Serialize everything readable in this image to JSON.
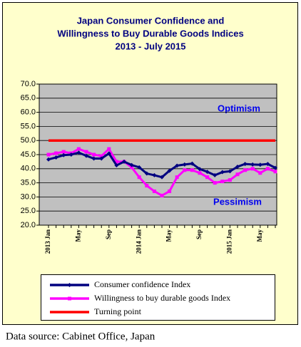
{
  "chart_data": {
    "type": "line",
    "title": [
      "Japan Consumer Confidence and",
      "Willingness to Buy Durable Goods Indices",
      "2013 - July  2015"
    ],
    "categories": [
      "2013 Jan",
      null,
      null,
      null,
      "May",
      null,
      null,
      null,
      "Sep",
      null,
      null,
      null,
      "2014 Jan",
      null,
      null,
      null,
      "May",
      null,
      null,
      null,
      "Sep",
      null,
      null,
      null,
      "2015 Jan",
      null,
      null,
      null,
      "May",
      null,
      null
    ],
    "series": [
      {
        "name": "Consumer confidence Index",
        "color": "#000080",
        "values": [
          43.3,
          44.0,
          44.8,
          45.0,
          45.7,
          44.6,
          43.6,
          43.6,
          45.4,
          41.2,
          42.5,
          41.3,
          40.5,
          38.3,
          37.7,
          37.0,
          39.3,
          41.1,
          41.5,
          41.8,
          39.9,
          38.9,
          37.7,
          38.8,
          39.1,
          40.7,
          41.7,
          41.5,
          41.4,
          41.7,
          40.3
        ]
      },
      {
        "name": "Willingness to buy durable goods Index",
        "color": "#ff00ff",
        "values": [
          45.0,
          45.5,
          46.0,
          45.5,
          47.0,
          46.0,
          45.0,
          44.5,
          47.0,
          42.5,
          42.5,
          40.5,
          37.0,
          34.0,
          32.0,
          30.5,
          32.0,
          37.0,
          39.5,
          39.5,
          38.5,
          37.0,
          35.0,
          35.5,
          36.0,
          38.0,
          39.5,
          40.0,
          38.5,
          40.0,
          39.0
        ]
      },
      {
        "name": "Turning point",
        "color": "#ff0000",
        "values": [
          50,
          50,
          50,
          50,
          50,
          50,
          50,
          50,
          50,
          50,
          50,
          50,
          50,
          50,
          50,
          50,
          50,
          50,
          50,
          50,
          50,
          50,
          50,
          50,
          50,
          50,
          50,
          50,
          50,
          50,
          50
        ]
      }
    ],
    "ylim": [
      20,
      70
    ],
    "yticks": [
      {
        "value": 20,
        "label": "20.0"
      },
      {
        "value": 25,
        "label": "25.0"
      },
      {
        "value": 30,
        "label": "30.0"
      },
      {
        "value": 35,
        "label": "35.0"
      },
      {
        "value": 40,
        "label": "40.0"
      },
      {
        "value": 45,
        "label": "45.0"
      },
      {
        "value": 50,
        "label": "50.0"
      },
      {
        "value": 55,
        "label": "55.0"
      },
      {
        "value": 60,
        "label": "60.0"
      },
      {
        "value": 65,
        "label": "65.0"
      },
      {
        "value": 70,
        "label": "70.0"
      }
    ],
    "grid": true,
    "annotations": [
      "Optimism",
      "Pessimism"
    ],
    "source": "Data source: Cabinet Office, Japan"
  }
}
